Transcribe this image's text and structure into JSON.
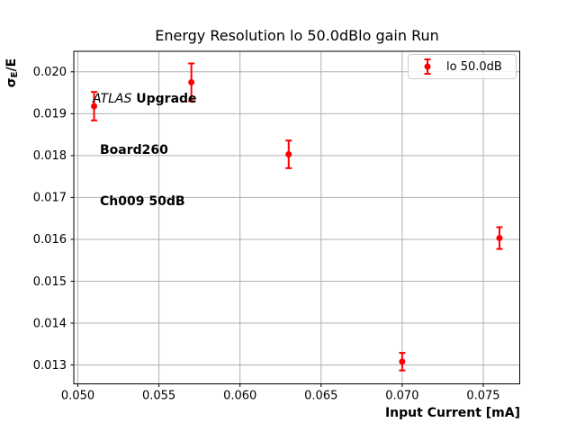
{
  "chart_data": {
    "type": "scatter",
    "title": "Energy Resolution lo 50.0dBlo gain Run",
    "xlabel": "Input Current [mA]",
    "ylabel": "σE/E",
    "ylabel_parts": {
      "base": "σ",
      "sub": "E",
      "suffix": "/E"
    },
    "xlim": [
      0.04975,
      0.07725
    ],
    "ylim": [
      0.01255,
      0.02049
    ],
    "x_ticks": [
      0.05,
      0.055,
      0.06,
      0.065,
      0.07,
      0.075
    ],
    "x_tick_labels": [
      "0.050",
      "0.055",
      "0.060",
      "0.065",
      "0.070",
      "0.075"
    ],
    "y_ticks": [
      0.013,
      0.014,
      0.015,
      0.016,
      0.017,
      0.018,
      0.019,
      0.02
    ],
    "y_tick_labels": [
      "0.013",
      "0.014",
      "0.015",
      "0.016",
      "0.017",
      "0.018",
      "0.019",
      "0.020"
    ],
    "grid": true,
    "legend_position": "upper right",
    "series": [
      {
        "name": "lo 50.0dB",
        "color": "#ff0000",
        "marker": "circle",
        "x": [
          0.051,
          0.057,
          0.063,
          0.07,
          0.076
        ],
        "y": [
          0.01918,
          0.01975,
          0.01803,
          0.01308,
          0.01603
        ],
        "yerr": [
          0.00034,
          0.00045,
          0.00033,
          0.00021,
          0.00026
        ]
      }
    ],
    "annotation": {
      "atlas": "ATLAS",
      "upgrade": " Upgrade",
      "board": "Board260",
      "channel": "Ch009 50dB"
    },
    "colors": {
      "series": "#ff0000",
      "grid": "#b0b0b0",
      "spine": "#000000",
      "legend_border": "#cccccc",
      "background": "#ffffff"
    }
  },
  "legend": {
    "label": "lo 50.0dB"
  }
}
